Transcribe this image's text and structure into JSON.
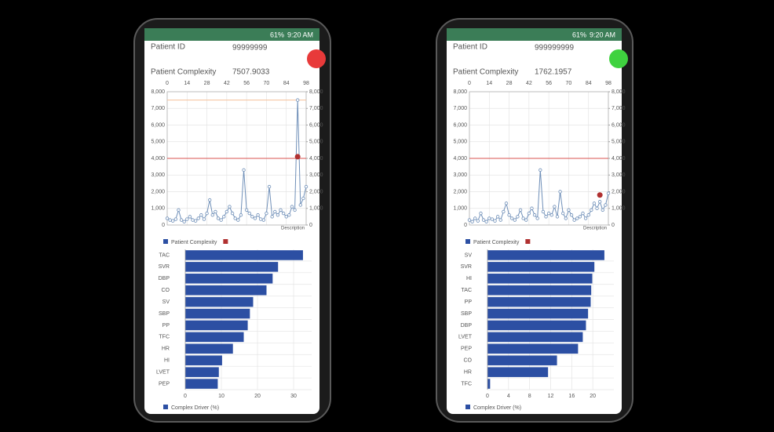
{
  "phones": [
    {
      "status": {
        "battery": "61%",
        "time": "9:20 AM"
      },
      "patient_id_label": "Patient ID",
      "patient_id": "99999999",
      "complexity_label": "Patient Complexity",
      "complexity": 7507.9033,
      "alert_color": "#e83a3a",
      "line_chart": {
        "type": "line",
        "x": [
          0,
          2,
          4,
          6,
          8,
          10,
          12,
          14,
          16,
          18,
          20,
          22,
          24,
          26,
          28,
          30,
          32,
          34,
          36,
          38,
          40,
          42,
          44,
          46,
          48,
          50,
          52,
          54,
          56,
          58,
          60,
          62,
          64,
          66,
          68,
          70,
          72,
          74,
          76,
          78,
          80,
          82,
          84,
          86,
          88,
          90,
          92,
          94,
          96,
          98
        ],
        "series": [
          {
            "name": "Patient Complexity",
            "color": "#6f8fb8",
            "values": [
              400,
              300,
              250,
              350,
              900,
              300,
              200,
              350,
              500,
              300,
              250,
              400,
              600,
              350,
              700,
              1500,
              600,
              800,
              400,
              300,
              500,
              800,
              1100,
              700,
              400,
              300,
              600,
              3300,
              900,
              700,
              500,
              400,
              600,
              350,
              300,
              700,
              2300,
              500,
              800,
              600,
              900,
              700,
              500,
              600,
              1100,
              900,
              7500,
              1200,
              1600,
              2300
            ]
          },
          {
            "color": "#b03030",
            "x": [
              92
            ],
            "values": [
              4100
            ]
          }
        ],
        "xlim": [
          0,
          98
        ],
        "xticks": [
          0,
          14,
          28,
          42,
          56,
          70,
          84,
          98
        ],
        "ylim": [
          0,
          8000
        ],
        "yticks": [
          0,
          {
            "value": 1000,
            "label": "1,000"
          },
          {
            "value": 2000,
            "label": "2,000"
          },
          {
            "value": 3000,
            "label": "3,000"
          },
          {
            "value": 4000,
            "label": "4,000"
          },
          {
            "value": 5000,
            "label": "5,000"
          },
          {
            "value": 6000,
            "label": "6,000"
          },
          {
            "value": 7000,
            "label": "7,000"
          },
          {
            "value": 8000,
            "label": "8,000"
          }
        ],
        "y2lim": [
          0,
          8000
        ],
        "y2ticks": [
          0,
          {
            "value": 1000,
            "label": "1,000"
          },
          {
            "value": 2000,
            "label": "2,000"
          },
          {
            "value": 3000,
            "label": "3,000"
          },
          {
            "value": 4000,
            "label": "4,000"
          },
          {
            "value": 5000,
            "label": "5,000"
          },
          {
            "value": 6000,
            "label": "6,000"
          },
          {
            "value": 7000,
            "label": "7,000"
          },
          {
            "value": 8000,
            "label": "8,000"
          }
        ],
        "ref_lines": [
          {
            "value": 4000,
            "color": "#d9534f"
          },
          {
            "value": 7500,
            "color": "#f5c09a"
          }
        ],
        "x_label": "Description",
        "grid": true
      },
      "bar_chart": {
        "type": "bar",
        "categories": [
          "TAC",
          "SVR",
          "DBP",
          "CO",
          "SV",
          "SBP",
          "PP",
          "TFC",
          "HR",
          "HI",
          "LVET",
          "PEP"
        ],
        "values": [
          32.6,
          25.7,
          24.2,
          22.5,
          18.8,
          17.9,
          17.3,
          16.2,
          13.2,
          10.2,
          9.3,
          9.0
        ],
        "color": "#2c4fa3",
        "xlim": [
          0,
          35
        ],
        "xticks": [
          0,
          10,
          20,
          30
        ],
        "legend": "Complex Driver (%)",
        "grid": true
      }
    },
    {
      "status": {
        "battery": "61%",
        "time": "9:20 AM"
      },
      "patient_id_label": "Patient ID",
      "patient_id": "999999999",
      "complexity_label": "Patient Complexity",
      "complexity": 1762.1957,
      "alert_color": "#3fd23f",
      "line_chart": {
        "type": "line",
        "x": [
          0,
          2,
          4,
          6,
          8,
          10,
          12,
          14,
          16,
          18,
          20,
          22,
          24,
          26,
          28,
          30,
          32,
          34,
          36,
          38,
          40,
          42,
          44,
          46,
          48,
          50,
          52,
          54,
          56,
          58,
          60,
          62,
          64,
          66,
          68,
          70,
          72,
          74,
          76,
          78,
          80,
          82,
          84,
          86,
          88,
          90,
          92,
          94,
          96,
          98
        ],
        "series": [
          {
            "name": "Patient Complexity",
            "color": "#6f8fb8",
            "values": [
              300,
              200,
              400,
              250,
              700,
              300,
              200,
              400,
              350,
              250,
              500,
              300,
              800,
              1300,
              600,
              400,
              300,
              500,
              900,
              400,
              300,
              700,
              1000,
              600,
              400,
              3300,
              800,
              500,
              700,
              600,
              1100,
              500,
              2000,
              700,
              400,
              900,
              600,
              300,
              400,
              500,
              700,
              400,
              600,
              900,
              1300,
              1000,
              1400,
              900,
              1200,
              1900
            ]
          },
          {
            "color": "#b03030",
            "x": [
              92
            ],
            "values": [
              1800
            ]
          }
        ],
        "xlim": [
          0,
          98
        ],
        "xticks": [
          0,
          14,
          28,
          42,
          56,
          70,
          84,
          98
        ],
        "ylim": [
          0,
          8000
        ],
        "yticks": [
          0,
          {
            "value": 1000,
            "label": "1,000"
          },
          {
            "value": 2000,
            "label": "2,000"
          },
          {
            "value": 3000,
            "label": "3,000"
          },
          {
            "value": 4000,
            "label": "4,000"
          },
          {
            "value": 5000,
            "label": "5,000"
          },
          {
            "value": 6000,
            "label": "6,000"
          },
          {
            "value": 7000,
            "label": "7,000"
          },
          {
            "value": 8000,
            "label": "8,000"
          }
        ],
        "y2lim": [
          0,
          8000
        ],
        "y2ticks": [
          0,
          {
            "value": 1000,
            "label": "1,000"
          },
          {
            "value": 2000,
            "label": "2,000"
          },
          {
            "value": 3000,
            "label": "3,000"
          },
          {
            "value": 4000,
            "label": "4,000"
          },
          {
            "value": 5000,
            "label": "5,000"
          },
          {
            "value": 6000,
            "label": "6,000"
          },
          {
            "value": 7000,
            "label": "7,000"
          },
          {
            "value": 8000,
            "label": "8,000"
          }
        ],
        "ref_lines": [
          {
            "value": 4000,
            "color": "#d9534f"
          }
        ],
        "x_label": "Description",
        "grid": true
      },
      "bar_chart": {
        "type": "bar",
        "categories": [
          "SV",
          "SVR",
          "HI",
          "TAC",
          "PP",
          "SBP",
          "DBP",
          "LVET",
          "PEP",
          "CO",
          "HR",
          "TFC"
        ],
        "values": [
          22.2,
          20.3,
          19.9,
          19.7,
          19.6,
          19.1,
          18.7,
          18.1,
          17.2,
          13.2,
          11.5,
          0.5
        ],
        "color": "#2c4fa3",
        "xlim": [
          0,
          24
        ],
        "xticks": [
          0,
          4,
          8,
          12,
          16,
          20
        ],
        "legend": "Complex Driver (%)",
        "grid": true
      }
    }
  ]
}
